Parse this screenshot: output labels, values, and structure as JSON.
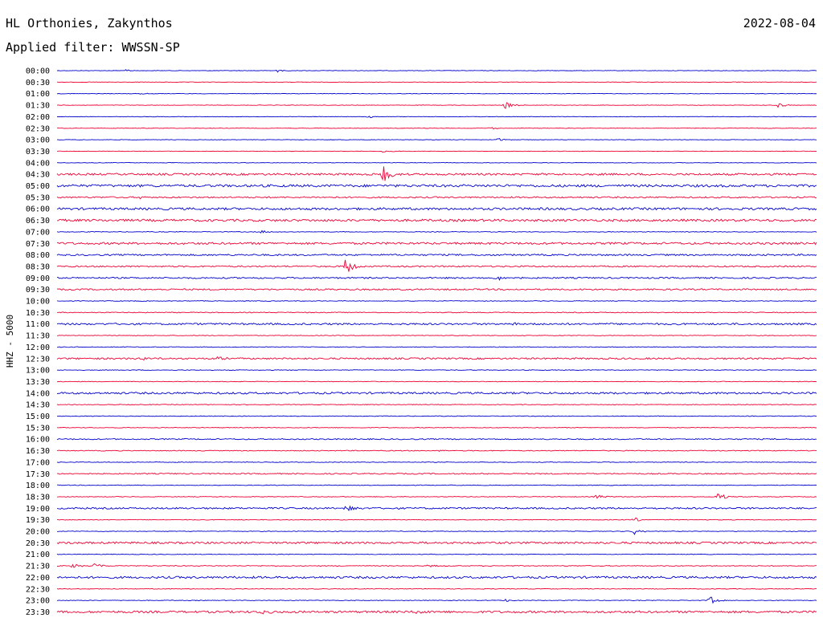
{
  "header": {
    "station": "HL Orthonies, Zakynthos",
    "date": "2022-08-04",
    "filter": "Applied filter: WWSSN-SP"
  },
  "chart_data": {
    "type": "line",
    "title": "HL Orthonies, Zakynthos",
    "ylabel": "HHZ - 5000",
    "rows": [
      "00:00",
      "00:30",
      "01:00",
      "01:30",
      "02:00",
      "02:30",
      "03:00",
      "03:30",
      "04:00",
      "04:30",
      "05:00",
      "05:30",
      "06:00",
      "06:30",
      "07:00",
      "07:30",
      "08:00",
      "08:30",
      "09:00",
      "09:30",
      "10:00",
      "10:30",
      "11:00",
      "11:30",
      "12:00",
      "12:30",
      "13:00",
      "13:30",
      "14:00",
      "14:30",
      "15:00",
      "15:30",
      "16:00",
      "16:30",
      "17:00",
      "17:30",
      "18:00",
      "18:30",
      "19:00",
      "19:30",
      "20:00",
      "20:30",
      "21:00",
      "21:30",
      "22:00",
      "22:30",
      "23:00",
      "23:30"
    ],
    "trace_colors": [
      "#0000cc",
      "#ee0033"
    ],
    "noise_levels": [
      0.3,
      0.3,
      0.3,
      0.3,
      0.3,
      0.3,
      0.3,
      0.3,
      0.3,
      1.2,
      1.5,
      0.9,
      1.4,
      1.4,
      0.4,
      1.3,
      1.0,
      0.9,
      0.9,
      0.9,
      0.4,
      0.5,
      1.1,
      0.4,
      0.4,
      1.0,
      0.4,
      0.4,
      1.2,
      0.4,
      0.4,
      0.4,
      0.7,
      0.5,
      0.4,
      0.7,
      0.4,
      0.4,
      1.0,
      0.4,
      0.4,
      1.2,
      0.4,
      0.5,
      1.3,
      0.4,
      0.4,
      1.3
    ],
    "events": [
      {
        "row": 0,
        "t": 0.09,
        "amp": 2
      },
      {
        "row": 0,
        "t": 0.29,
        "amp": 2
      },
      {
        "row": 2,
        "t": 0.11,
        "amp": 1
      },
      {
        "row": 3,
        "t": 0.59,
        "amp": 5
      },
      {
        "row": 3,
        "t": 0.95,
        "amp": 3
      },
      {
        "row": 4,
        "t": 0.41,
        "amp": 2
      },
      {
        "row": 5,
        "t": 0.57,
        "amp": 2
      },
      {
        "row": 6,
        "t": 0.58,
        "amp": 2
      },
      {
        "row": 7,
        "t": 0.43,
        "amp": 2
      },
      {
        "row": 9,
        "t": 0.43,
        "amp": 12
      },
      {
        "row": 11,
        "t": 0.11,
        "amp": 2
      },
      {
        "row": 14,
        "t": 0.27,
        "amp": 2
      },
      {
        "row": 17,
        "t": 0.38,
        "amp": 12
      },
      {
        "row": 18,
        "t": 0.58,
        "amp": 3
      },
      {
        "row": 22,
        "t": 0.6,
        "amp": 3
      },
      {
        "row": 25,
        "t": 0.11,
        "amp": 3
      },
      {
        "row": 25,
        "t": 0.21,
        "amp": 3
      },
      {
        "row": 33,
        "t": 0.5,
        "amp": 2
      },
      {
        "row": 37,
        "t": 0.71,
        "amp": 3
      },
      {
        "row": 37,
        "t": 0.87,
        "amp": 6
      },
      {
        "row": 38,
        "t": 0.38,
        "amp": 5
      },
      {
        "row": 39,
        "t": 0.76,
        "amp": 3
      },
      {
        "row": 40,
        "t": 0.76,
        "amp": 4
      },
      {
        "row": 43,
        "t": 0.02,
        "amp": 3
      },
      {
        "row": 43,
        "t": 0.05,
        "amp": 4
      },
      {
        "row": 43,
        "t": 0.49,
        "amp": 2
      },
      {
        "row": 46,
        "t": 0.59,
        "amp": 2
      },
      {
        "row": 46,
        "t": 0.86,
        "amp": 5
      },
      {
        "row": 47,
        "t": 0.27,
        "amp": 3
      },
      {
        "row": 47,
        "t": 0.47,
        "amp": 4
      }
    ]
  }
}
